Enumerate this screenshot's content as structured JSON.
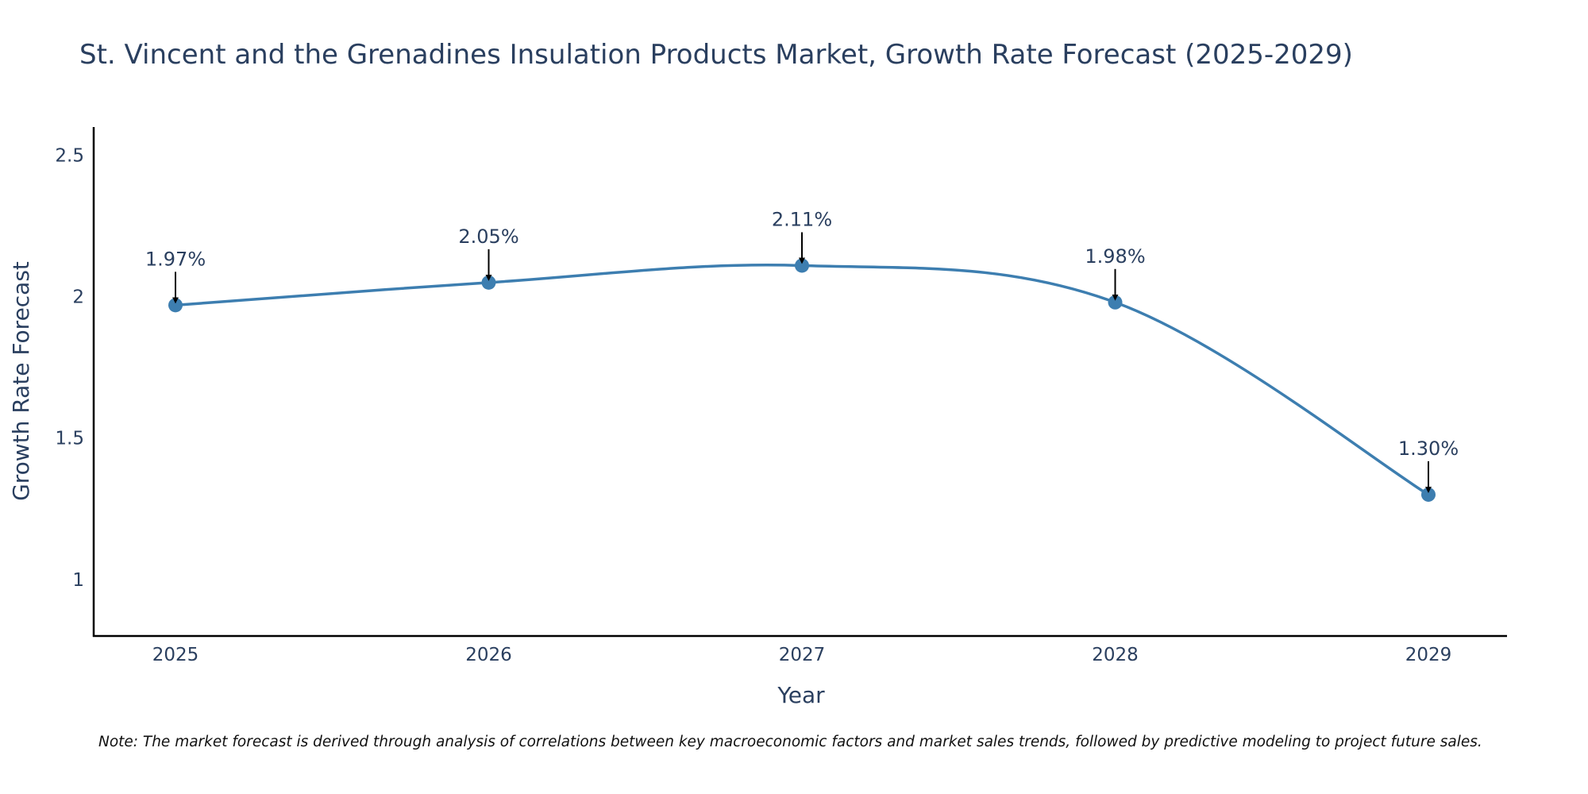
{
  "chart_data": {
    "type": "line",
    "title": "St. Vincent and the Grenadines Insulation Products Market, Growth Rate Forecast (2025-2029)",
    "xlabel": "Year",
    "ylabel": "Growth Rate Forecast",
    "categories": [
      "2025",
      "2026",
      "2027",
      "2028",
      "2029"
    ],
    "values": [
      1.97,
      2.05,
      2.11,
      1.98,
      1.3
    ],
    "data_labels": [
      "1.97%",
      "2.05%",
      "2.11%",
      "1.98%",
      "1.30%"
    ],
    "yticks": [
      1,
      1.5,
      2,
      2.5
    ],
    "ytick_labels": [
      "1",
      "1.5",
      "2",
      "2.5"
    ],
    "ylim": [
      0.8,
      2.6
    ],
    "grid": false,
    "line_shape": "spline",
    "line_color": "#3d7eb0",
    "marker_color": "#3d7eb0",
    "arrow_color": "#000000"
  },
  "note": "Note: The market forecast is derived through analysis of correlations between key macroeconomic factors and market sales trends, followed by predictive modeling to project future sales."
}
